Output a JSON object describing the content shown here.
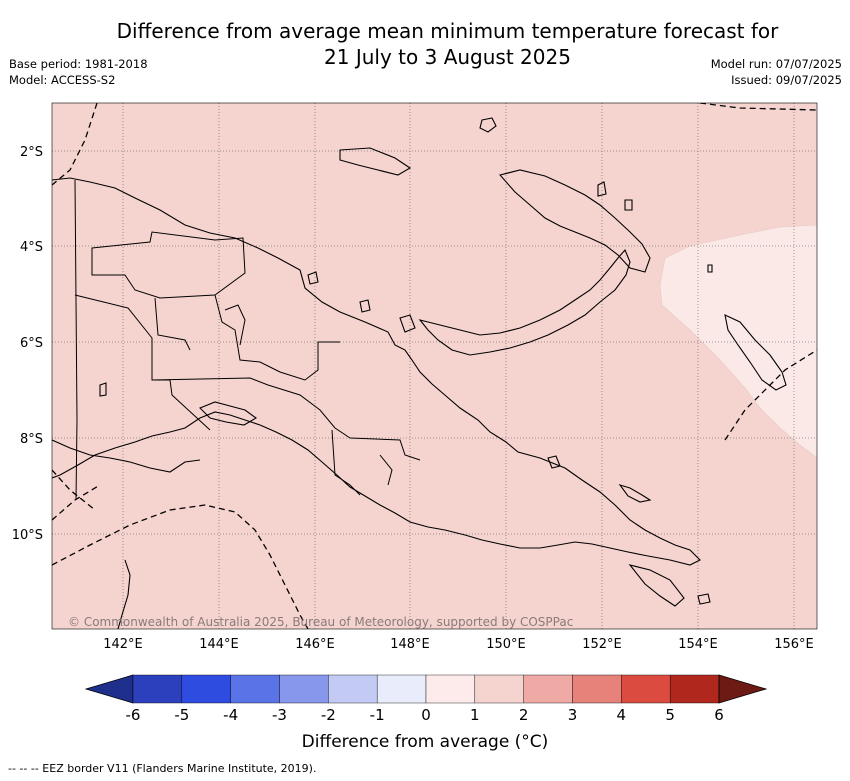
{
  "title_line1": "Difference from average mean minimum temperature forecast for",
  "title_line2": "21 July to 3 August 2025",
  "base_period": "Base period: 1981-2018",
  "model": "Model: ACCESS-S2",
  "model_run": "Model run: 07/07/2025",
  "issued": "Issued: 09/07/2025",
  "copyright": "© Commonwealth of Australia 2025, Bureau of Meteorology, supported by COSPPac",
  "footer_note": "--  --  -- EEZ border V11 (Flanders Marine Institute, 2019).",
  "map_extent": {
    "lon_min": 140.5,
    "lon_max": 156.5,
    "lat_min": -12.0,
    "lat_max": -1.0
  },
  "lon_ticks": [
    "142°E",
    "144°E",
    "146°E",
    "148°E",
    "150°E",
    "152°E",
    "154°E",
    "156°E"
  ],
  "lat_ticks": [
    "2°S",
    "4°S",
    "6°S",
    "8°S",
    "10°S"
  ],
  "field_colors": {
    "dominant_bin": "1 to 2",
    "dominant_color": "#f5d4d0",
    "eastern_patch_bin": "0 to 1",
    "eastern_patch_color": "#fbe9e7"
  },
  "colorbar": {
    "title": "Difference from average (°C)",
    "tick_labels": [
      "-6",
      "-5",
      "-4",
      "-3",
      "-2",
      "-1",
      "0",
      "1",
      "2",
      "3",
      "4",
      "5",
      "6"
    ],
    "colors": [
      "#1e2f8c",
      "#2c3fbd",
      "#2f4ce0",
      "#5a73e6",
      "#8797eb",
      "#c3cbf5",
      "#e9edfb",
      "#fcebea",
      "#f5d4d0",
      "#f0aaa5",
      "#e6827a",
      "#db4b40",
      "#b0271e",
      "#6e1a14"
    ]
  }
}
